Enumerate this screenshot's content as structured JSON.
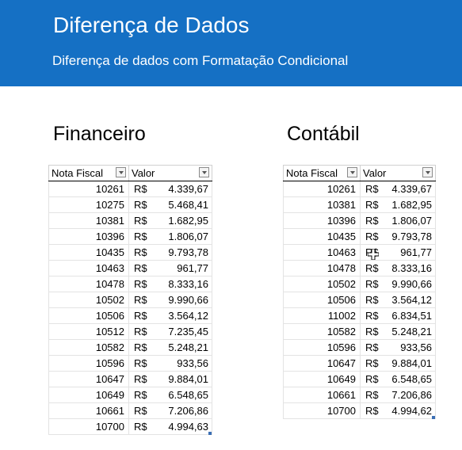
{
  "header": {
    "title": "Diferença de Dados",
    "subtitle": "Diferença de dados com Formatação Condicional"
  },
  "colors": {
    "banner": "#1570c4",
    "header_text": "#ffffff"
  },
  "financeiro": {
    "title": "Financeiro",
    "columns": [
      "Nota Fiscal",
      "Valor"
    ],
    "currency": "R$",
    "rows": [
      {
        "nf": "10261",
        "valor": "4.339,67"
      },
      {
        "nf": "10275",
        "valor": "5.468,41"
      },
      {
        "nf": "10381",
        "valor": "1.682,95"
      },
      {
        "nf": "10396",
        "valor": "1.806,07"
      },
      {
        "nf": "10435",
        "valor": "9.793,78"
      },
      {
        "nf": "10463",
        "valor": "961,77"
      },
      {
        "nf": "10478",
        "valor": "8.333,16"
      },
      {
        "nf": "10502",
        "valor": "9.990,66"
      },
      {
        "nf": "10506",
        "valor": "3.564,12"
      },
      {
        "nf": "10512",
        "valor": "7.235,45"
      },
      {
        "nf": "10582",
        "valor": "5.248,21"
      },
      {
        "nf": "10596",
        "valor": "933,56"
      },
      {
        "nf": "10647",
        "valor": "9.884,01"
      },
      {
        "nf": "10649",
        "valor": "6.548,65"
      },
      {
        "nf": "10661",
        "valor": "7.206,86"
      },
      {
        "nf": "10700",
        "valor": "4.994,63"
      }
    ]
  },
  "contabil": {
    "title": "Contábil",
    "columns": [
      "Nota Fiscal",
      "Valor"
    ],
    "currency": "R$",
    "rows": [
      {
        "nf": "10261",
        "valor": "4.339,67"
      },
      {
        "nf": "10381",
        "valor": "1.682,95"
      },
      {
        "nf": "10396",
        "valor": "1.806,07"
      },
      {
        "nf": "10435",
        "valor": "9.793,78"
      },
      {
        "nf": "10463",
        "valor": "961,77"
      },
      {
        "nf": "10478",
        "valor": "8.333,16"
      },
      {
        "nf": "10502",
        "valor": "9.990,66"
      },
      {
        "nf": "10506",
        "valor": "3.564,12"
      },
      {
        "nf": "11002",
        "valor": "6.834,51"
      },
      {
        "nf": "10582",
        "valor": "5.248,21"
      },
      {
        "nf": "10596",
        "valor": "933,56"
      },
      {
        "nf": "10647",
        "valor": "9.884,01"
      },
      {
        "nf": "10649",
        "valor": "6.548,65"
      },
      {
        "nf": "10661",
        "valor": "7.206,86"
      },
      {
        "nf": "10700",
        "valor": "4.994,62"
      }
    ]
  },
  "icons": {
    "filter": "filter-dropdown-icon",
    "cursor": "excel-cross-cursor-icon"
  }
}
